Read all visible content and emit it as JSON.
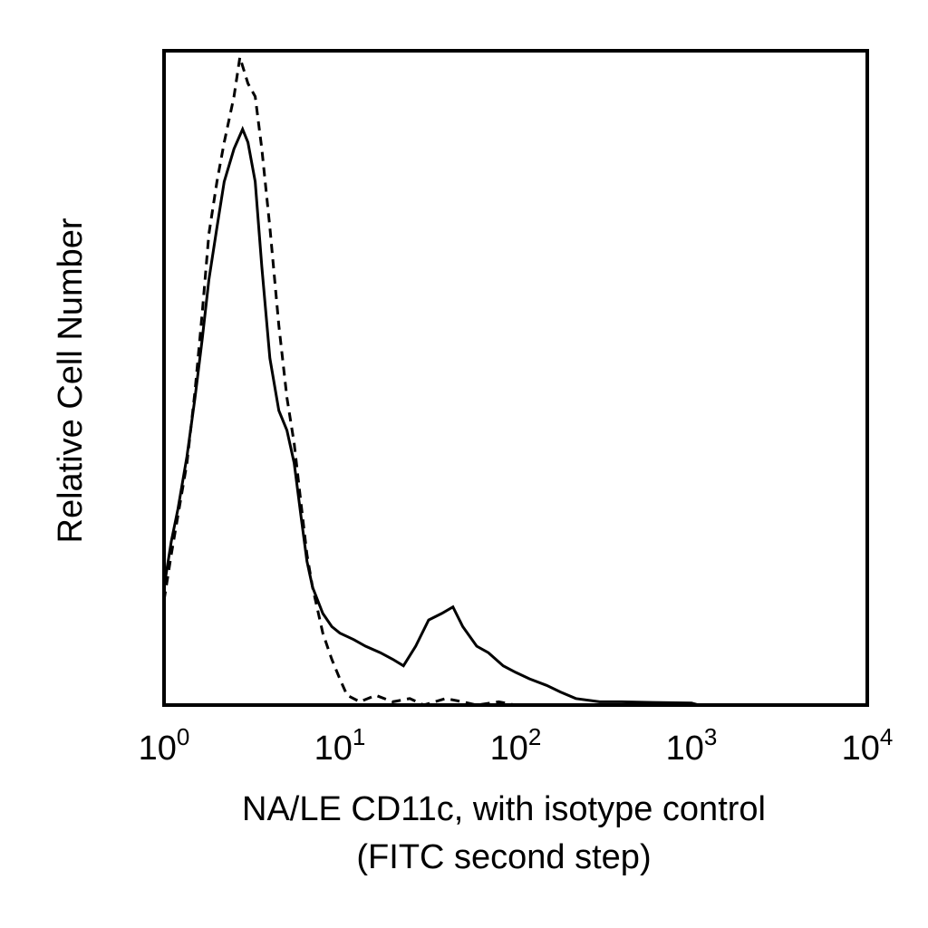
{
  "chart_data": {
    "type": "line",
    "xscale": "log",
    "xlim": [
      1,
      10000
    ],
    "ylim": [
      0,
      1
    ],
    "grid": false,
    "legend": "none",
    "title": "",
    "xlabel_lines": [
      "NA/LE CD11c, with isotype control",
      "(FITC second step)"
    ],
    "ylabel": "Relative Cell Number",
    "xticks": [
      {
        "value": 1,
        "base": "10",
        "exp": "0"
      },
      {
        "value": 10,
        "base": "10",
        "exp": "1"
      },
      {
        "value": 100,
        "base": "10",
        "exp": "2"
      },
      {
        "value": 1000,
        "base": "10",
        "exp": "3"
      },
      {
        "value": 10000,
        "base": "10",
        "exp": "4"
      }
    ],
    "series": [
      {
        "style": "solid",
        "color": "#000000",
        "points": [
          [
            1.0,
            0.18
          ],
          [
            1.1,
            0.25
          ],
          [
            1.2,
            0.3
          ],
          [
            1.35,
            0.38
          ],
          [
            1.5,
            0.47
          ],
          [
            1.65,
            0.56
          ],
          [
            1.8,
            0.65
          ],
          [
            2.0,
            0.73
          ],
          [
            2.2,
            0.8
          ],
          [
            2.5,
            0.85
          ],
          [
            2.8,
            0.88
          ],
          [
            3.0,
            0.86
          ],
          [
            3.3,
            0.8
          ],
          [
            3.6,
            0.67
          ],
          [
            4.0,
            0.53
          ],
          [
            4.5,
            0.45
          ],
          [
            5.0,
            0.42
          ],
          [
            5.5,
            0.37
          ],
          [
            6.0,
            0.29
          ],
          [
            6.5,
            0.22
          ],
          [
            7.0,
            0.18
          ],
          [
            8.0,
            0.14
          ],
          [
            9.0,
            0.12
          ],
          [
            10.0,
            0.11
          ],
          [
            12.0,
            0.1
          ],
          [
            14.0,
            0.09
          ],
          [
            17.0,
            0.08
          ],
          [
            20.0,
            0.07
          ],
          [
            23.0,
            0.06
          ],
          [
            27.0,
            0.09
          ],
          [
            32.0,
            0.13
          ],
          [
            38.0,
            0.14
          ],
          [
            44.0,
            0.15
          ],
          [
            50.0,
            0.12
          ],
          [
            60.0,
            0.09
          ],
          [
            70.0,
            0.08
          ],
          [
            85.0,
            0.06
          ],
          [
            100.0,
            0.05
          ],
          [
            120.0,
            0.04
          ],
          [
            150.0,
            0.03
          ],
          [
            180.0,
            0.02
          ],
          [
            220.0,
            0.01
          ],
          [
            300.0,
            0.005
          ],
          [
            400.0,
            0.005
          ],
          [
            600.0,
            0.004
          ],
          [
            1000.0,
            0.003
          ],
          [
            1100.0,
            0.0
          ]
        ]
      },
      {
        "style": "dashed",
        "color": "#000000",
        "points": [
          [
            1.0,
            0.16
          ],
          [
            1.1,
            0.23
          ],
          [
            1.2,
            0.29
          ],
          [
            1.35,
            0.37
          ],
          [
            1.5,
            0.48
          ],
          [
            1.65,
            0.6
          ],
          [
            1.8,
            0.72
          ],
          [
            2.0,
            0.8
          ],
          [
            2.2,
            0.86
          ],
          [
            2.5,
            0.93
          ],
          [
            2.7,
            0.99
          ],
          [
            3.0,
            0.95
          ],
          [
            3.3,
            0.93
          ],
          [
            3.6,
            0.85
          ],
          [
            4.0,
            0.73
          ],
          [
            4.5,
            0.58
          ],
          [
            5.0,
            0.47
          ],
          [
            5.5,
            0.4
          ],
          [
            6.0,
            0.31
          ],
          [
            6.5,
            0.23
          ],
          [
            7.0,
            0.18
          ],
          [
            8.0,
            0.11
          ],
          [
            9.0,
            0.07
          ],
          [
            10.0,
            0.04
          ],
          [
            11.0,
            0.015
          ],
          [
            13.0,
            0.005
          ],
          [
            16.0,
            0.015
          ],
          [
            20.0,
            0.005
          ],
          [
            25.0,
            0.01
          ],
          [
            30.0,
            0.0
          ],
          [
            40.0,
            0.01
          ],
          [
            50.0,
            0.005
          ],
          [
            60.0,
            0.0
          ],
          [
            80.0,
            0.005
          ],
          [
            100.0,
            0.0
          ]
        ]
      }
    ]
  }
}
